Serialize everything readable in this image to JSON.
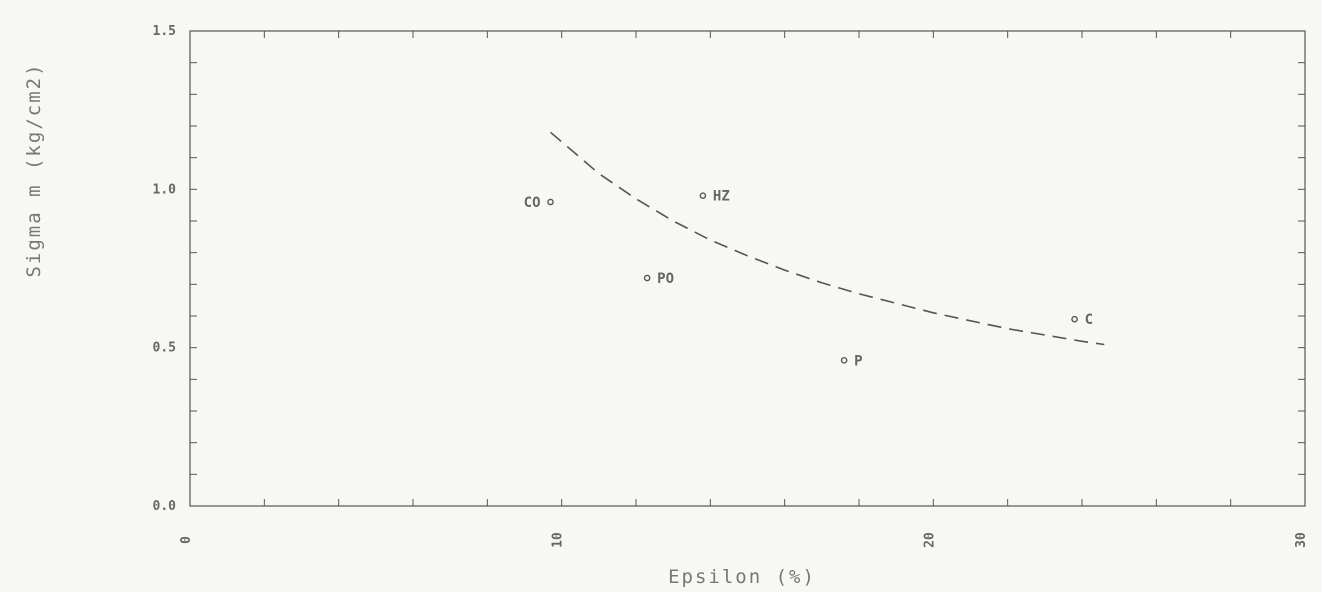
{
  "chart_data": {
    "type": "scatter",
    "title": "",
    "xlabel": "Epsilon (%)",
    "ylabel": "Sigma m (kg/cm2)",
    "xlim": [
      0,
      30
    ],
    "ylim": [
      0,
      1.5
    ],
    "x_ticks": [
      "0",
      "10",
      "20",
      "30"
    ],
    "y_ticks": [
      "0.0",
      "0.5",
      "1.0",
      "1.5"
    ],
    "grid": false,
    "points": [
      {
        "label": "CO",
        "x": 9.7,
        "y": 0.96
      },
      {
        "label": "HZ",
        "x": 13.8,
        "y": 0.98
      },
      {
        "label": "PO",
        "x": 12.3,
        "y": 0.72
      },
      {
        "label": "P",
        "x": 17.6,
        "y": 0.46
      },
      {
        "label": "C",
        "x": 23.8,
        "y": 0.59
      }
    ],
    "curve": {
      "style": "dashed",
      "x": [
        9.7,
        11,
        12,
        13,
        14,
        15,
        16,
        17,
        18,
        19,
        20,
        21,
        22,
        23,
        24,
        24.6
      ],
      "y": [
        1.18,
        1.05,
        0.97,
        0.9,
        0.84,
        0.79,
        0.745,
        0.705,
        0.67,
        0.64,
        0.61,
        0.585,
        0.56,
        0.54,
        0.52,
        0.51
      ]
    },
    "colors": {
      "ink": "#555555",
      "background": "#f7f7f4"
    }
  }
}
